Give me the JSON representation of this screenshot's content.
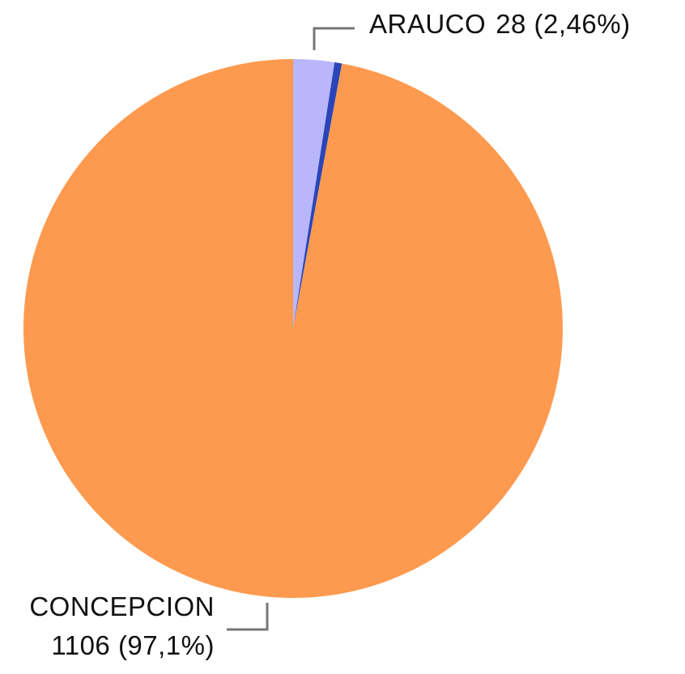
{
  "chart_data": {
    "type": "pie",
    "categories": [
      "ARAUCO",
      null,
      "CONCEPCION"
    ],
    "values": [
      28,
      5,
      1106
    ],
    "value_labels": [
      "28 (2,46%)",
      null,
      "1106 (97,1%)"
    ],
    "colors": [
      "#b9b6fb",
      "#2a45b8",
      "#fe9a4f"
    ]
  }
}
